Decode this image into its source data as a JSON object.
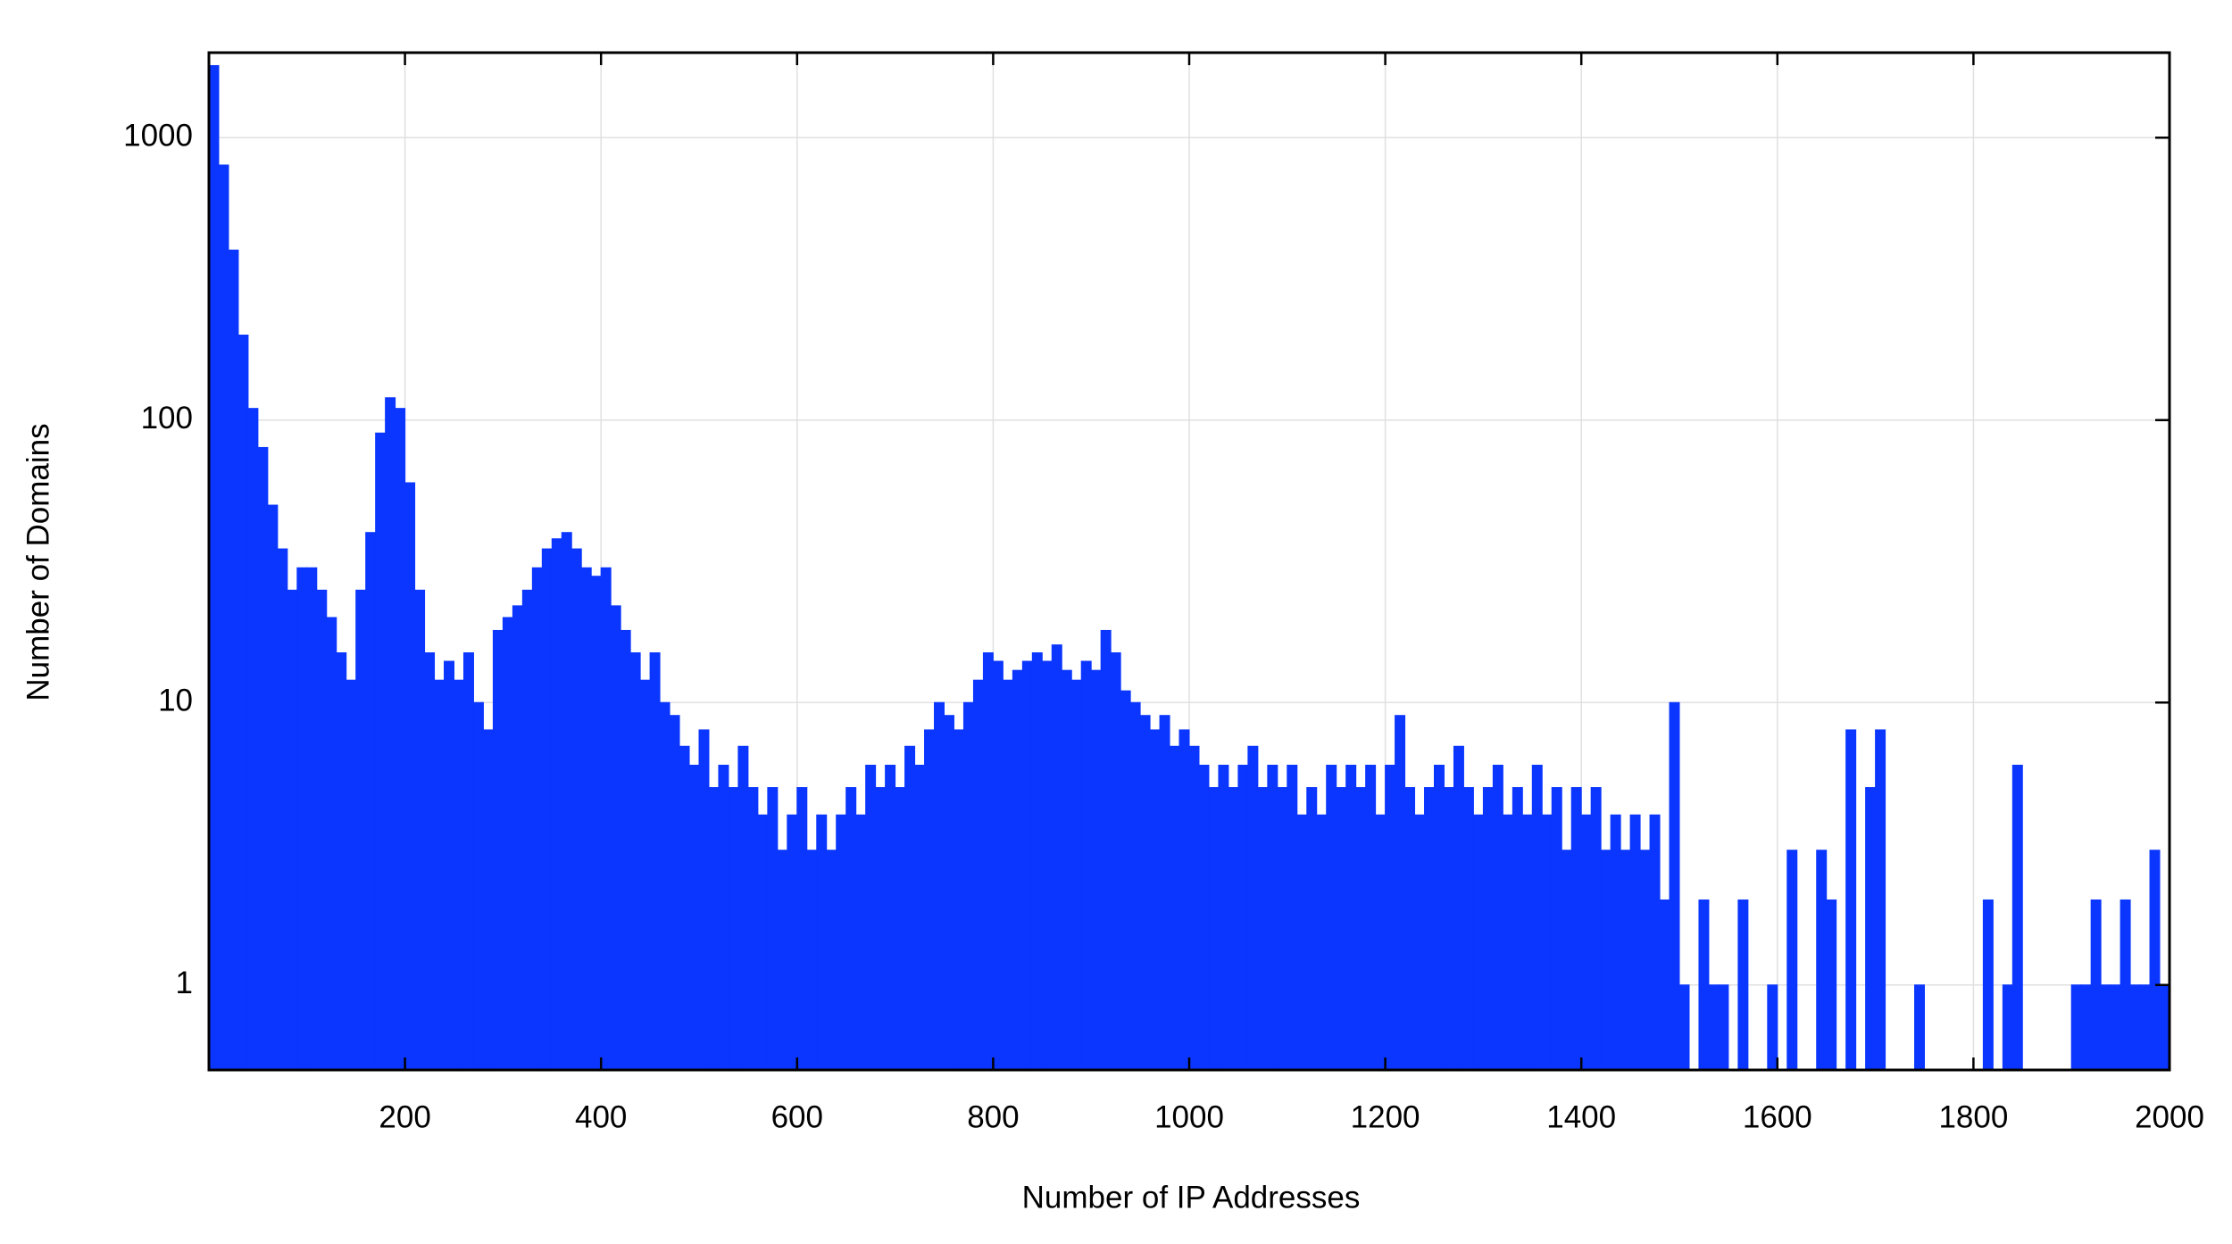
{
  "chart_data": {
    "type": "histogram",
    "x_label": "Number of IP Addresses",
    "y_label": "Number of Domains",
    "color": "#0a36ff",
    "log_y": true,
    "grid": true,
    "xlim": [
      0,
      2000
    ],
    "ylim": [
      0.5,
      2000
    ],
    "xticks": [
      200,
      400,
      600,
      800,
      1000,
      1200,
      1400,
      1600,
      1800,
      2000
    ],
    "yticks": [
      1,
      10,
      100,
      1000
    ],
    "bins": [
      0,
      10,
      20,
      30,
      40,
      50,
      60,
      70,
      80,
      90,
      100,
      110,
      120,
      130,
      140,
      150,
      160,
      170,
      180,
      190,
      200,
      210,
      220,
      230,
      240,
      250,
      260,
      270,
      280,
      290,
      300,
      310,
      320,
      330,
      340,
      350,
      360,
      370,
      380,
      390,
      400,
      410,
      420,
      430,
      440,
      450,
      460,
      470,
      480,
      490,
      500,
      510,
      520,
      530,
      540,
      550,
      560,
      570,
      580,
      590,
      600,
      610,
      620,
      630,
      640,
      650,
      660,
      670,
      680,
      690,
      700,
      710,
      720,
      730,
      740,
      750,
      760,
      770,
      780,
      790,
      800,
      810,
      820,
      830,
      840,
      850,
      860,
      870,
      880,
      890,
      900,
      910,
      920,
      930,
      940,
      950,
      960,
      970,
      980,
      990,
      1000,
      1010,
      1020,
      1030,
      1040,
      1050,
      1060,
      1070,
      1080,
      1090,
      1100,
      1110,
      1120,
      1130,
      1140,
      1150,
      1160,
      1170,
      1180,
      1190,
      1200,
      1210,
      1220,
      1230,
      1240,
      1250,
      1260,
      1270,
      1280,
      1290,
      1300,
      1310,
      1320,
      1330,
      1340,
      1350,
      1360,
      1370,
      1380,
      1390,
      1400,
      1410,
      1420,
      1430,
      1440,
      1450,
      1460,
      1470,
      1480,
      1490,
      1500,
      1510,
      1520,
      1530,
      1540,
      1550,
      1560,
      1570,
      1580,
      1590,
      1600,
      1610,
      1620,
      1630,
      1640,
      1650,
      1660,
      1670,
      1680,
      1690,
      1700,
      1710,
      1720,
      1730,
      1740,
      1750,
      1760,
      1770,
      1780,
      1790,
      1800,
      1810,
      1820,
      1830,
      1840,
      1850,
      1860,
      1870,
      1880,
      1890,
      1900,
      1910,
      1920,
      1930,
      1940,
      1950,
      1960,
      1970,
      1980,
      1990,
      2000
    ],
    "values": [
      1800,
      800,
      400,
      200,
      110,
      80,
      50,
      35,
      25,
      30,
      30,
      25,
      20,
      15,
      12,
      25,
      40,
      90,
      120,
      110,
      60,
      25,
      15,
      12,
      14,
      12,
      15,
      10,
      8,
      18,
      20,
      22,
      25,
      30,
      35,
      38,
      40,
      35,
      30,
      28,
      30,
      22,
      18,
      15,
      12,
      15,
      10,
      9,
      7,
      6,
      8,
      5,
      6,
      5,
      7,
      5,
      4,
      5,
      3,
      4,
      5,
      3,
      4,
      3,
      4,
      5,
      4,
      6,
      5,
      6,
      5,
      7,
      6,
      8,
      10,
      9,
      8,
      10,
      12,
      15,
      14,
      12,
      13,
      14,
      15,
      14,
      16,
      13,
      12,
      14,
      13,
      18,
      15,
      11,
      10,
      9,
      8,
      9,
      7,
      8,
      7,
      6,
      5,
      6,
      5,
      6,
      7,
      5,
      6,
      5,
      6,
      4,
      5,
      4,
      6,
      5,
      6,
      5,
      6,
      4,
      6,
      9,
      5,
      4,
      5,
      6,
      5,
      7,
      5,
      4,
      5,
      6,
      4,
      5,
      4,
      6,
      4,
      5,
      3,
      5,
      4,
      5,
      3,
      4,
      3,
      4,
      3,
      4,
      2,
      10,
      1,
      0,
      2,
      1,
      1,
      0,
      2,
      0,
      0,
      1,
      0,
      3,
      0,
      0,
      3,
      2,
      0,
      8,
      0,
      5,
      8,
      0,
      0,
      0,
      1,
      0,
      0,
      0,
      0,
      0,
      0,
      2,
      0,
      1,
      6,
      0,
      0,
      0,
      0,
      0,
      1,
      1,
      2,
      1,
      1,
      2,
      1,
      1,
      3,
      1
    ]
  }
}
